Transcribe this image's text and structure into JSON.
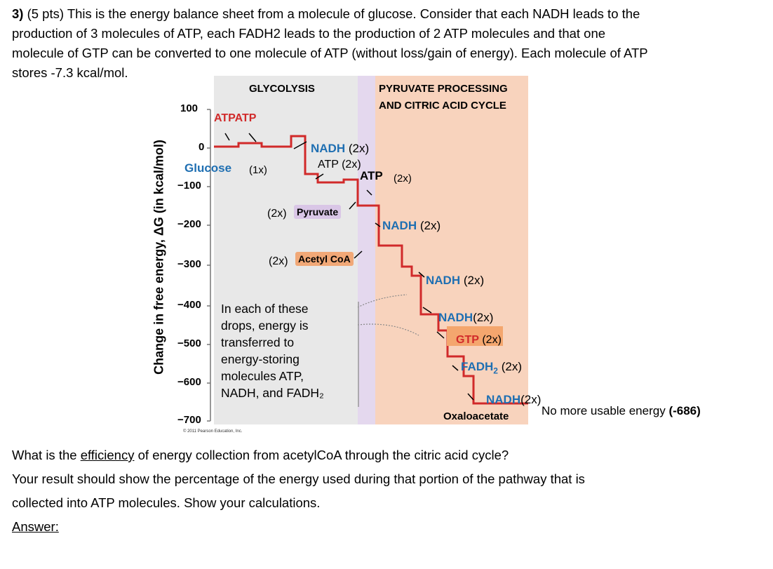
{
  "question": {
    "number": "3)",
    "points": "(5 pts)",
    "line1": "This is the energy balance sheet from a molecule of glucose.  Consider that each NADH leads to the",
    "line2": "production of 3 molecules of ATP, each FADH2 leads to the production of 2 ATP molecules and that one",
    "line3": "molecule of GTP can be converted to one molecule of ATP (without loss/gain of energy).  Each molecule of ATP",
    "line4": "stores -7.3 kcal/mol."
  },
  "figure": {
    "header_glycolysis": "GLYCOLYSIS",
    "header_pyruvate_1": "PYRUVATE PROCESSING",
    "header_pyruvate_2": "AND CITRIC ACID CYCLE",
    "y_axis_label": "Change in free energy, ΔG (in kcal/mol)",
    "y_ticks": [
      "100",
      "0",
      "−100",
      "−200",
      "−300",
      "−400",
      "−500",
      "−600",
      "−700"
    ],
    "atp_atp": "ATPATP",
    "glucose": "Glucose",
    "glucose_count": "(1x)",
    "nadh_1": "NADH (2x)",
    "atp_2x_a": "ATP (2x)",
    "atp_2x_b": "ATP",
    "atp_2x_b_count": "(2x)",
    "pyruvate_count": "(2x)",
    "pyruvate": "Pyruvate",
    "acetyl_count": "(2x)",
    "acetyl": "Acetyl CoA",
    "nadh_2": "NADH",
    "nadh_2_count": "(2x)",
    "nadh_3": "NADH",
    "nadh_3_count": "(2x)",
    "nadh_4": "NADH",
    "nadh_4_count": "(2x)",
    "gtp": "GTP",
    "gtp_count": "(2x)",
    "fadh2": "FADH",
    "fadh2_sub": "2",
    "fadh2_count": "(2x)",
    "nadh_5": "NADH",
    "nadh_5_count": "(2x)",
    "oxaloacetate": "Oxaloacetate",
    "info_lines": [
      "In each of these",
      "drops, energy is",
      "transferred to",
      "energy-storing",
      "molecules ATP,",
      "NADH, and FADH₂"
    ],
    "copyright": "© 2011 Pearson Education, Inc.",
    "no_more_energy": "No more usable energy",
    "no_more_energy_value": "(-686)"
  },
  "question2": {
    "line1_prefix": "What is the",
    "line1_underlined": "efficiency",
    "line1_suffix": "of energy collection from acetylCoA through the citric acid cycle?",
    "line2": "Your result should show the percentage of the energy used during that portion of the pathway that is",
    "line3": "collected into ATP molecules. Show your calculations.",
    "answer_label": "Answer:"
  },
  "colors": {
    "step_line": "#d12a2a",
    "glycolysis_bg": "#e8e8e8",
    "pyruvate_band": "#e4d8ee",
    "citric_bg": "#f8d3bd",
    "nadh_blue": "#1f6fb2",
    "pyruvate_label_bg": "#d9c6e6",
    "acetyl_label_bg": "#f1a877",
    "gtp_box": "#f4a66e"
  }
}
